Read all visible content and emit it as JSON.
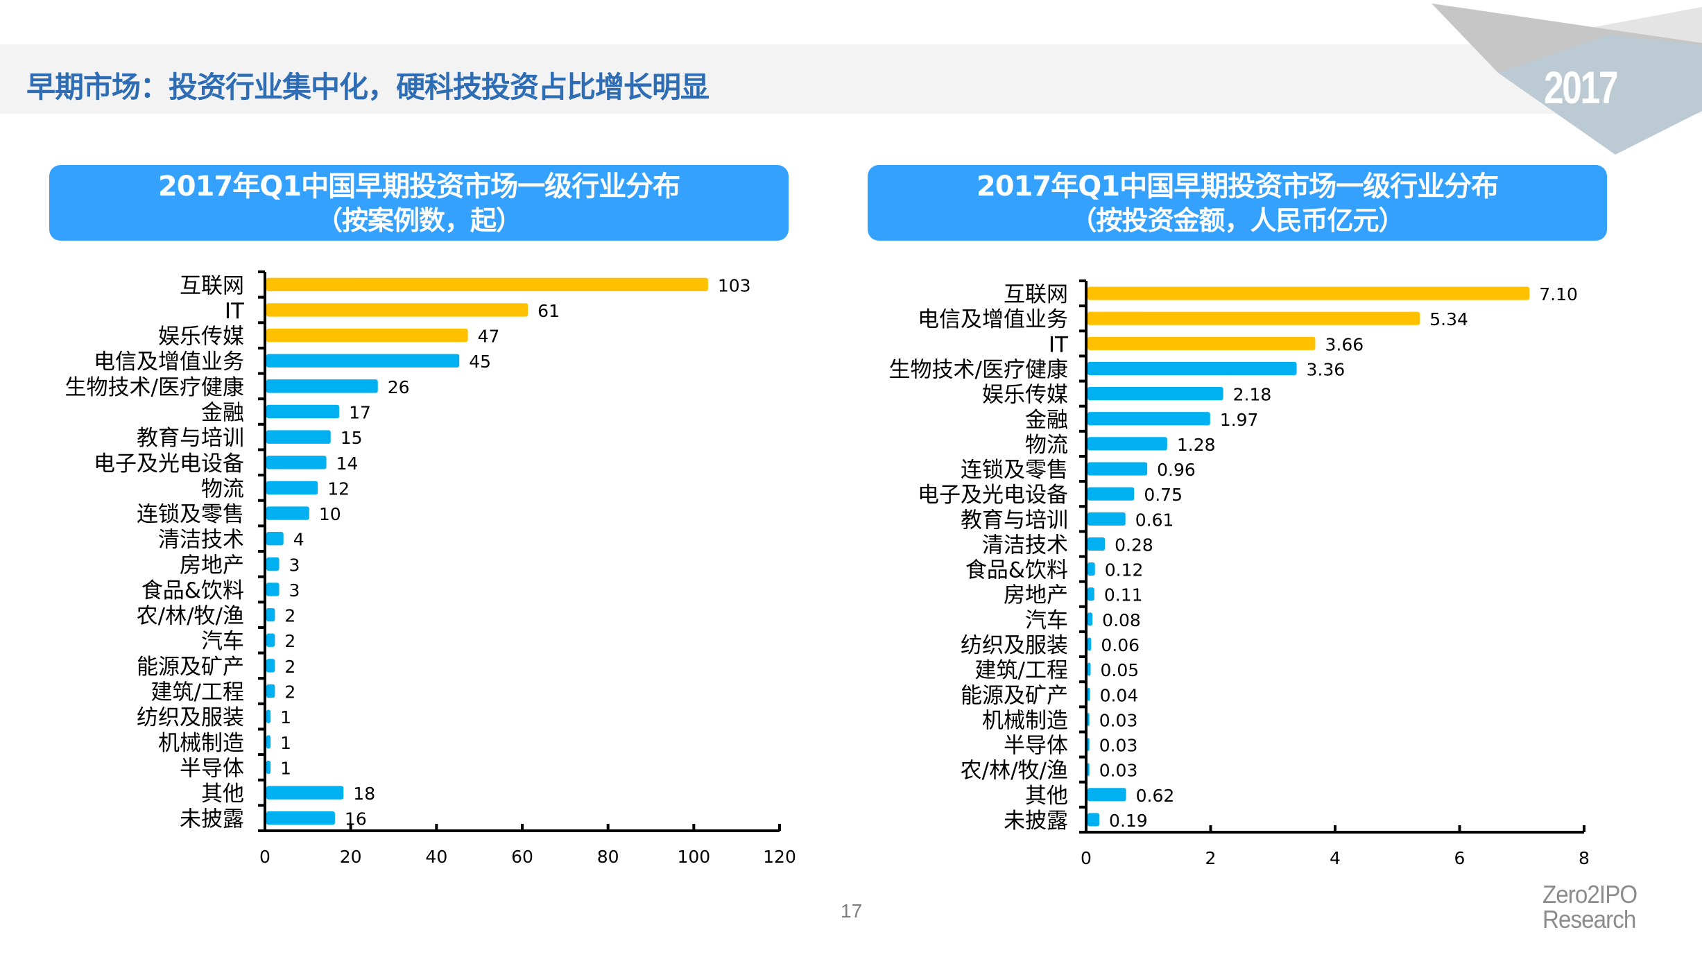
{
  "page": {
    "title": "早期市场：投资行业集中化，硬科技投资占比增长明显",
    "year_badge": "2017",
    "page_number": "17",
    "logo": {
      "line1": "Zero2IPO",
      "line2": "Research"
    },
    "colors": {
      "title": "#2e6db4",
      "panel": "#33a1fd",
      "highlight_bar": "#ffc000",
      "normal_bar": "#00b0f0",
      "deco_gray": "#c6c6c6",
      "deco_light": "#e4e4e4",
      "deco_blue": "#bccad4"
    }
  },
  "panels": [
    {
      "line1": "2017年Q1中国早期投资市场一级行业分布",
      "line2": "（按案例数，起）"
    },
    {
      "line1": "2017年Q1中国早期投资市场一级行业分布",
      "line2": "（按投资金额，人民币亿元）"
    }
  ],
  "chart_data": [
    {
      "type": "bar",
      "orientation": "horizontal",
      "title": "2017年Q1中国早期投资市场一级行业分布（按案例数，起）",
      "xlabel": "",
      "ylabel": "",
      "xlim": [
        0,
        120
      ],
      "xticks": [
        0,
        20,
        40,
        60,
        80,
        100,
        120
      ],
      "grid": false,
      "legend": "none",
      "categories": [
        "互联网",
        "IT",
        "娱乐传媒",
        "电信及增值业务",
        "生物技术/医疗健康",
        "金融",
        "教育与培训",
        "电子及光电设备",
        "物流",
        "连锁及零售",
        "清洁技术",
        "房地产",
        "食品&饮料",
        "农/林/牧/渔",
        "汽车",
        "能源及矿产",
        "建筑/工程",
        "纺织及服装",
        "机械制造",
        "半导体",
        "其他",
        "未披露"
      ],
      "values": [
        103,
        61,
        47,
        45,
        26,
        17,
        15,
        14,
        12,
        10,
        4,
        3,
        3,
        2,
        2,
        2,
        2,
        1,
        1,
        1,
        18,
        16
      ],
      "value_labels": [
        "103",
        "61",
        "47",
        "45",
        "26",
        "17",
        "15",
        "14",
        "12",
        "10",
        "4",
        "3",
        "3",
        "2",
        "2",
        "2",
        "2",
        "1",
        "1",
        "1",
        "18",
        "16"
      ],
      "highlighted": [
        true,
        true,
        true,
        false,
        false,
        false,
        false,
        false,
        false,
        false,
        false,
        false,
        false,
        false,
        false,
        false,
        false,
        false,
        false,
        false,
        false,
        false
      ]
    },
    {
      "type": "bar",
      "orientation": "horizontal",
      "title": "2017年Q1中国早期投资市场一级行业分布（按投资金额，人民币亿元）",
      "xlabel": "",
      "ylabel": "",
      "xlim": [
        0,
        8
      ],
      "xticks": [
        0,
        2,
        4,
        6,
        8
      ],
      "grid": false,
      "legend": "none",
      "categories": [
        "互联网",
        "电信及增值业务",
        "IT",
        "生物技术/医疗健康",
        "娱乐传媒",
        "金融",
        "物流",
        "连锁及零售",
        "电子及光电设备",
        "教育与培训",
        "清洁技术",
        "食品&饮料",
        "房地产",
        "汽车",
        "纺织及服装",
        "建筑/工程",
        "能源及矿产",
        "机械制造",
        "半导体",
        "农/林/牧/渔",
        "其他",
        "未披露"
      ],
      "values": [
        7.1,
        5.34,
        3.66,
        3.36,
        2.18,
        1.97,
        1.28,
        0.96,
        0.75,
        0.61,
        0.28,
        0.12,
        0.11,
        0.08,
        0.06,
        0.05,
        0.04,
        0.03,
        0.03,
        0.03,
        0.62,
        0.19
      ],
      "value_labels": [
        "7.10",
        "5.34",
        "3.66",
        "3.36",
        "2.18",
        "1.97",
        "1.28",
        "0.96",
        "0.75",
        "0.61",
        "0.28",
        "0.12",
        "0.11",
        "0.08",
        "0.06",
        "0.05",
        "0.04",
        "0.03",
        "0.03",
        "0.03",
        "0.62",
        "0.19"
      ],
      "highlighted": [
        true,
        true,
        true,
        false,
        false,
        false,
        false,
        false,
        false,
        false,
        false,
        false,
        false,
        false,
        false,
        false,
        false,
        false,
        false,
        false,
        false,
        false
      ]
    }
  ]
}
